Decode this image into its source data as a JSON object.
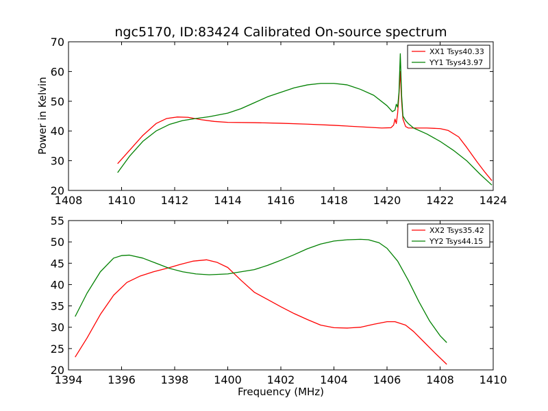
{
  "chart_data": [
    {
      "type": "line",
      "title": "ngc5170, ID:83424 Calibrated On-source spectrum",
      "xlabel": "",
      "ylabel": "Power in Kelvin",
      "xlim": [
        1408,
        1424
      ],
      "ylim": [
        20,
        70
      ],
      "xticks": [
        "1408",
        "1410",
        "1412",
        "1414",
        "1416",
        "1418",
        "1420",
        "1422",
        "1424"
      ],
      "yticks": [
        "20",
        "30",
        "40",
        "50",
        "60",
        "70"
      ],
      "grid": false,
      "legend_position": "top-right",
      "series": [
        {
          "name": "XX1 Tsys40.33",
          "color": "#ff0000",
          "x": [
            1409.85,
            1410.3,
            1410.8,
            1411.3,
            1411.7,
            1412.1,
            1412.5,
            1413.0,
            1413.5,
            1414.0,
            1415.0,
            1416.0,
            1417.0,
            1418.0,
            1419.0,
            1419.8,
            1420.15,
            1420.25,
            1420.3,
            1420.35,
            1420.4,
            1420.45,
            1420.5,
            1420.55,
            1420.6,
            1420.7,
            1420.8,
            1421.0,
            1421.5,
            1422.0,
            1422.3,
            1422.7,
            1423.0,
            1423.4,
            1423.7,
            1423.95
          ],
          "y": [
            29.0,
            33.5,
            38.5,
            42.5,
            44.2,
            44.7,
            44.6,
            43.8,
            43.2,
            42.9,
            42.8,
            42.6,
            42.3,
            41.9,
            41.4,
            41.0,
            41.1,
            42.0,
            44.0,
            42.5,
            46.0,
            52.0,
            60.0,
            50.0,
            44.0,
            41.5,
            41.0,
            41.0,
            41.0,
            40.8,
            40.2,
            38.0,
            34.5,
            29.5,
            26.0,
            23.3
          ]
        },
        {
          "name": "YY1 Tsys43.97",
          "color": "#008000",
          "x": [
            1409.85,
            1410.3,
            1410.8,
            1411.3,
            1411.8,
            1412.3,
            1412.8,
            1413.3,
            1414.0,
            1414.5,
            1415.0,
            1415.5,
            1416.0,
            1416.5,
            1417.0,
            1417.5,
            1418.0,
            1418.5,
            1419.0,
            1419.5,
            1420.0,
            1420.2,
            1420.3,
            1420.35,
            1420.4,
            1420.45,
            1420.5,
            1420.55,
            1420.6,
            1420.7,
            1420.8,
            1421.0,
            1421.5,
            1422.0,
            1422.5,
            1423.0,
            1423.5,
            1423.95
          ],
          "y": [
            26.0,
            31.5,
            36.5,
            40.0,
            42.2,
            43.5,
            44.2,
            44.8,
            46.0,
            47.5,
            49.5,
            51.5,
            53.0,
            54.5,
            55.5,
            56.0,
            56.0,
            55.5,
            54.0,
            52.0,
            48.5,
            46.5,
            47.0,
            49.0,
            48.0,
            53.0,
            66.0,
            52.0,
            45.0,
            43.5,
            42.5,
            41.0,
            39.0,
            36.5,
            33.5,
            30.0,
            25.5,
            21.8
          ]
        }
      ]
    },
    {
      "type": "line",
      "title": "",
      "xlabel": "Frequency (MHz)",
      "ylabel": "",
      "xlim": [
        1394,
        1410
      ],
      "ylim": [
        20,
        55
      ],
      "xticks": [
        "1394",
        "1396",
        "1398",
        "1400",
        "1402",
        "1404",
        "1406",
        "1408",
        "1410"
      ],
      "yticks": [
        "20",
        "25",
        "30",
        "35",
        "40",
        "45",
        "50",
        "55"
      ],
      "grid": false,
      "legend_position": "top-right",
      "series": [
        {
          "name": "XX2 Tsys35.42",
          "color": "#ff0000",
          "x": [
            1394.25,
            1394.7,
            1395.2,
            1395.7,
            1396.2,
            1396.7,
            1397.2,
            1397.7,
            1398.2,
            1398.7,
            1399.2,
            1399.6,
            1400.0,
            1400.5,
            1401.0,
            1401.5,
            1402.0,
            1402.5,
            1403.0,
            1403.5,
            1404.0,
            1404.5,
            1405.0,
            1405.5,
            1406.0,
            1406.3,
            1406.7,
            1407.0,
            1407.4,
            1407.8,
            1408.25
          ],
          "y": [
            23.0,
            27.5,
            33.0,
            37.5,
            40.5,
            42.0,
            43.0,
            43.8,
            44.7,
            45.5,
            45.8,
            45.2,
            44.0,
            41.0,
            38.2,
            36.5,
            34.8,
            33.2,
            31.8,
            30.5,
            29.9,
            29.8,
            30.0,
            30.7,
            31.3,
            31.3,
            30.5,
            29.0,
            26.5,
            24.0,
            21.3
          ]
        },
        {
          "name": "YY2 Tsys44.15",
          "color": "#008000",
          "x": [
            1394.25,
            1394.7,
            1395.2,
            1395.7,
            1396.0,
            1396.3,
            1396.8,
            1397.3,
            1397.8,
            1398.3,
            1398.8,
            1399.3,
            1400.0,
            1400.5,
            1401.0,
            1401.5,
            1402.0,
            1402.5,
            1403.0,
            1403.5,
            1404.0,
            1404.5,
            1405.0,
            1405.3,
            1405.7,
            1406.0,
            1406.4,
            1406.8,
            1407.2,
            1407.6,
            1408.0,
            1408.25
          ],
          "y": [
            32.5,
            38.0,
            43.0,
            46.2,
            46.8,
            46.9,
            46.2,
            45.0,
            43.8,
            43.0,
            42.5,
            42.3,
            42.5,
            43.0,
            43.5,
            44.5,
            45.7,
            47.0,
            48.4,
            49.5,
            50.2,
            50.5,
            50.6,
            50.5,
            49.8,
            48.5,
            45.5,
            41.0,
            36.0,
            31.5,
            28.0,
            26.4
          ]
        }
      ]
    }
  ]
}
